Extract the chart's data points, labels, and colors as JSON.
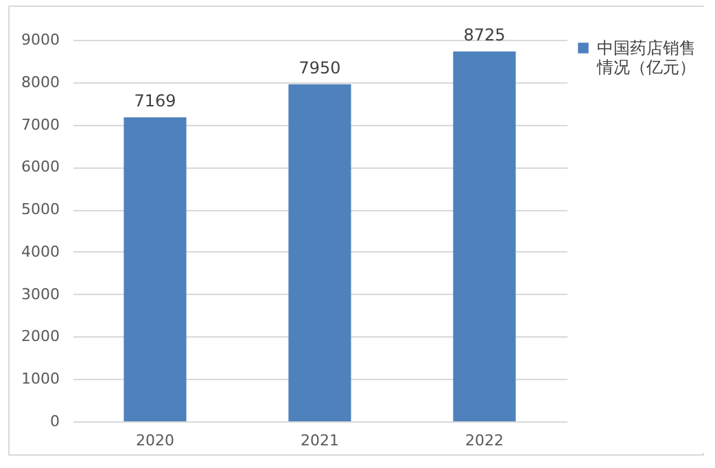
{
  "chart_data": {
    "type": "bar",
    "categories": [
      "2020",
      "2021",
      "2022"
    ],
    "series": [
      {
        "name": "中国药店销售情况（亿元）",
        "color": "#4f81bd",
        "values": [
          7169,
          7950,
          8725
        ]
      }
    ],
    "ylim": [
      0,
      9000
    ],
    "yticks": [
      0,
      1000,
      2000,
      3000,
      4000,
      5000,
      6000,
      7000,
      8000,
      9000
    ],
    "grid": "y",
    "legend": "right",
    "data_labels": true
  }
}
